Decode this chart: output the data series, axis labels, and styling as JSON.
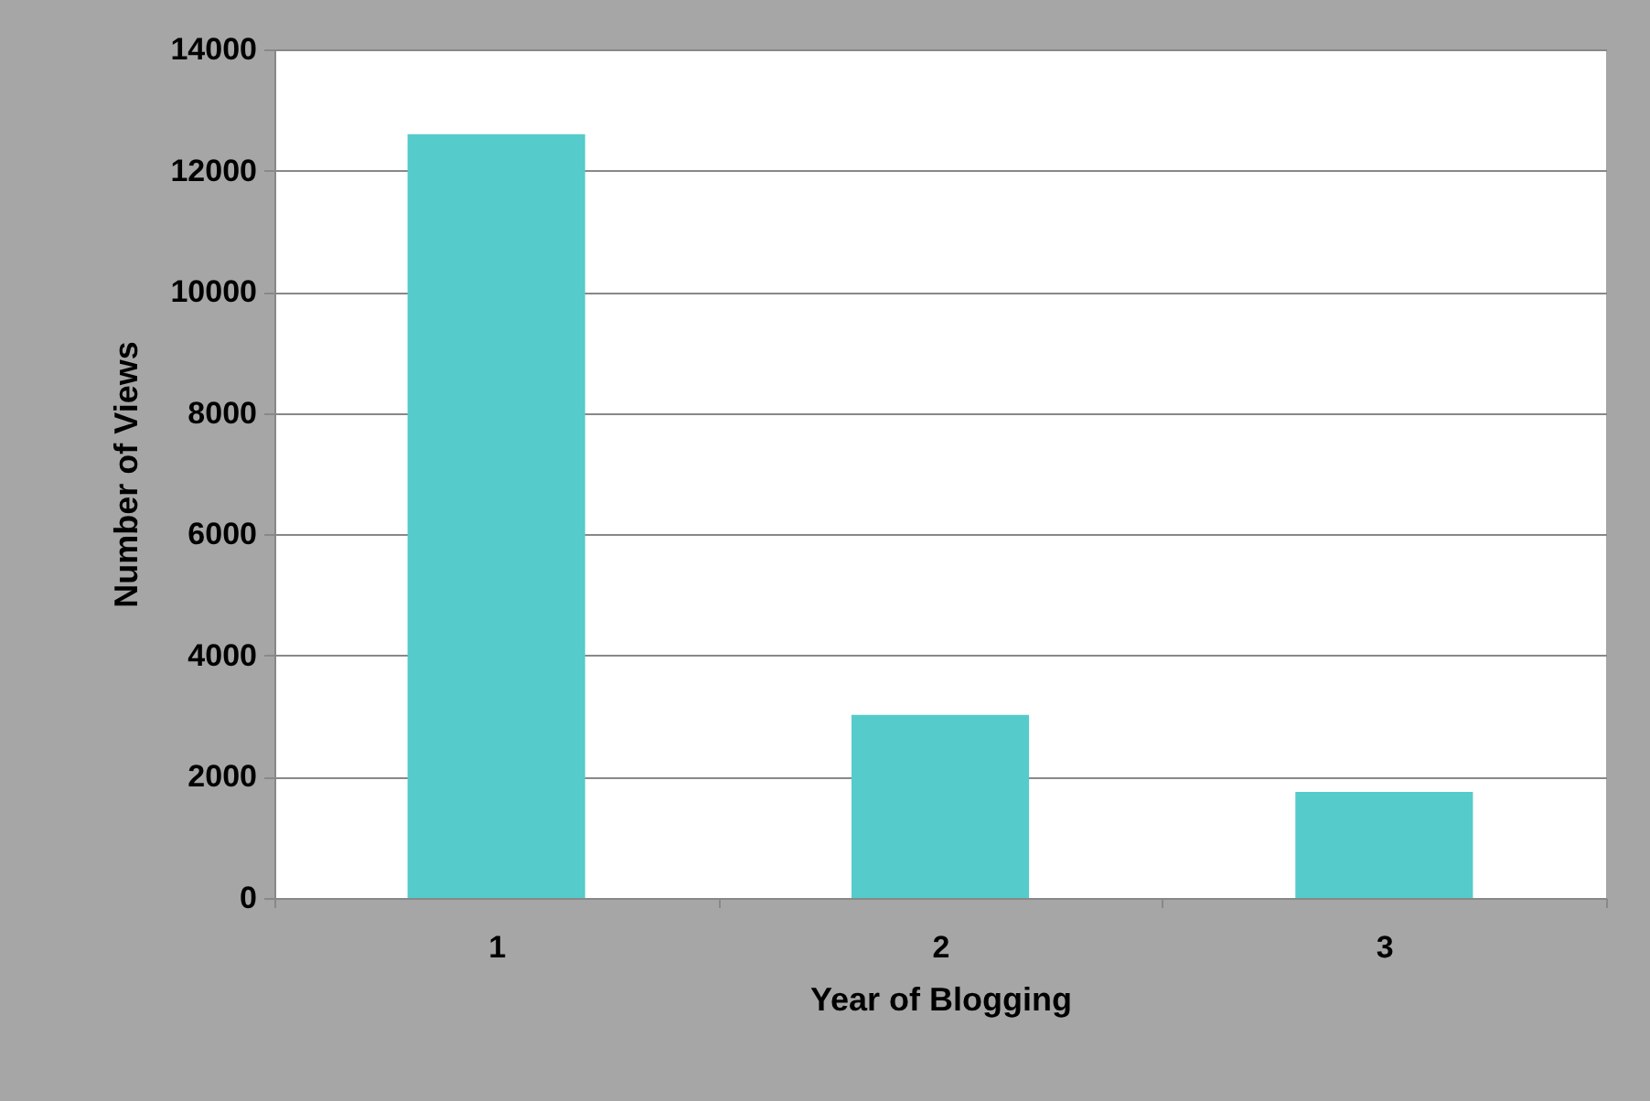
{
  "chart_data": {
    "type": "bar",
    "xlabel": "Year of Blogging",
    "ylabel": "Number of Views",
    "categories": [
      "1",
      "2",
      "3"
    ],
    "values": [
      12600,
      3020,
      1750
    ],
    "color": "#56cbcb",
    "ylim": [
      0,
      14000
    ],
    "yticks": [
      0,
      2000,
      4000,
      6000,
      8000,
      10000,
      12000,
      14000
    ],
    "grid": "y"
  }
}
